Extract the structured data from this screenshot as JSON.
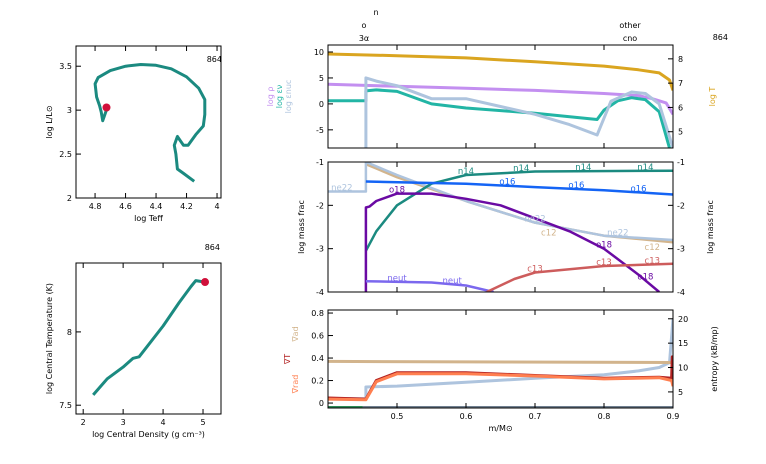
{
  "model_number": "864",
  "top_labels": {
    "n": "n",
    "o": "o",
    "three_alpha": "3α",
    "other": "other",
    "cno": "cno"
  },
  "colors": {
    "teal": "#1b8a80",
    "red": "#d0103a",
    "gold": "#daa520",
    "lavender": "#c38ff0",
    "lightblue": "#aec4de",
    "lightteal": "#22b5a5",
    "blue": "#1464f5",
    "purple": "#6a0aa3",
    "tan": "#d2b48c",
    "salmon": "#cd5c5c",
    "neut": "#7b68ee",
    "orange": "#ff7f50",
    "darkred": "#b22222",
    "gray": "#708090",
    "green": "#2e8b57"
  },
  "chart_data": [
    {
      "id": "hr",
      "type": "line",
      "xlabel": "log Teff",
      "ylabel": "log L/L⊙",
      "xlim": [
        4.925,
        3.974
      ],
      "ylim": [
        2,
        3.73
      ],
      "xticks": [
        4.8,
        4.6,
        4.4,
        4.2,
        4
      ],
      "xtick_labels": [
        "4.8",
        "4.6",
        "4.4",
        "4.2",
        "4"
      ],
      "yticks": [
        2,
        2.5,
        3,
        3.5
      ],
      "ytick_labels": [
        "2",
        "2.5",
        "3",
        "3.5"
      ],
      "x": [
        4.72,
        4.75,
        4.76,
        4.77,
        4.79,
        4.8,
        4.78,
        4.7,
        4.6,
        4.5,
        4.4,
        4.3,
        4.2,
        4.12,
        4.08,
        4.08,
        4.09,
        4.14,
        4.19,
        4.22,
        4.26,
        4.28,
        4.27,
        4.26,
        4.22,
        4.15
      ],
      "y": [
        3.03,
        2.88,
        2.98,
        3.05,
        3.15,
        3.3,
        3.37,
        3.45,
        3.5,
        3.52,
        3.51,
        3.47,
        3.38,
        3.25,
        3.12,
        2.95,
        2.82,
        2.72,
        2.6,
        2.6,
        2.7,
        2.6,
        2.5,
        2.33,
        2.28,
        2.19
      ],
      "current": [
        4.725,
        3.03
      ]
    },
    {
      "id": "center",
      "type": "line",
      "xlabel": "log Central Density (g cm⁻³)",
      "ylabel": "log Central Temperature (K)",
      "xlim": [
        1.82,
        5.45
      ],
      "ylim": [
        7.44,
        8.47
      ],
      "xticks": [
        2,
        3,
        4,
        5
      ],
      "xtick_labels": [
        "2",
        "3",
        "4",
        "5"
      ],
      "yticks": [
        7.5,
        8
      ],
      "ytick_labels": [
        "7.5",
        "8"
      ],
      "x": [
        2.25,
        2.6,
        3.0,
        3.25,
        3.4,
        3.6,
        4.0,
        4.4,
        4.7,
        4.82,
        5.05
      ],
      "y": [
        7.57,
        7.68,
        7.76,
        7.82,
        7.83,
        7.9,
        8.04,
        8.2,
        8.31,
        8.35,
        8.34
      ],
      "current": [
        5.05,
        8.34
      ]
    },
    {
      "id": "profile-top",
      "type": "line",
      "xlim": [
        0.4,
        0.9
      ],
      "ylim": [
        -8.5,
        11.35
      ],
      "ylim_right": [
        4.33,
        8.57
      ],
      "yticks": [
        -5,
        0,
        5,
        10
      ],
      "ytick_labels": [
        "-5",
        "0",
        "5",
        "10"
      ],
      "yticks_right": [
        5,
        6,
        7,
        8
      ],
      "ytick_labels_right": [
        "5",
        "6",
        "7",
        "8"
      ],
      "ylabels_left": [
        "log ρ",
        "log εν",
        "log εnuc"
      ],
      "ylabel_right": "log T",
      "series": [
        {
          "name": "log T",
          "axis": "right",
          "color": "gold",
          "x": [
            0.4,
            0.5,
            0.6,
            0.7,
            0.8,
            0.85,
            0.88,
            0.895,
            0.9
          ],
          "y": [
            8.2,
            8.13,
            8.04,
            7.88,
            7.7,
            7.55,
            7.42,
            7.13,
            6.7
          ]
        },
        {
          "name": "log ρ",
          "axis": "left",
          "color": "lavender",
          "x": [
            0.4,
            0.5,
            0.6,
            0.7,
            0.8,
            0.85,
            0.87,
            0.89,
            0.9
          ],
          "y": [
            3.8,
            3.4,
            3.0,
            2.6,
            2.0,
            1.6,
            1.0,
            0.2,
            -2
          ]
        },
        {
          "name": "log εν",
          "axis": "left",
          "color": "lightteal",
          "x": [
            0.4,
            0.455,
            0.455,
            0.47,
            0.5,
            0.55,
            0.6,
            0.7,
            0.79,
            0.8,
            0.82,
            0.84,
            0.86,
            0.88,
            0.895
          ],
          "y": [
            0.6,
            0.6,
            2.5,
            2.7,
            2.4,
            0,
            -0.8,
            -1.8,
            -3,
            -1.2,
            0.6,
            1.2,
            0.8,
            -1.5,
            -8.5
          ]
        },
        {
          "name": "log εnuc",
          "axis": "left",
          "color": "lightblue",
          "x": [
            0.455,
            0.455,
            0.47,
            0.5,
            0.55,
            0.6,
            0.65,
            0.7,
            0.75,
            0.79,
            0.81,
            0.84,
            0.86,
            0.88,
            0.9
          ],
          "y": [
            -8.5,
            5,
            4.4,
            3.5,
            1.0,
            1.0,
            -0.5,
            -2,
            -4,
            -6,
            0.5,
            2.3,
            2.0,
            0,
            -8.5
          ]
        }
      ]
    },
    {
      "id": "profile-abund",
      "type": "line",
      "xlim": [
        0.4,
        0.9
      ],
      "ylim": [
        -4,
        -1
      ],
      "yticks": [
        -4,
        -3,
        -2,
        -1
      ],
      "ytick_labels": [
        "-4",
        "-3",
        "-2",
        "-1"
      ],
      "ylabel": "log mass frac",
      "series": [
        {
          "name": "c12",
          "color": "tan",
          "x": [
            0.455,
            0.47,
            0.5,
            0.6,
            0.7,
            0.8,
            0.9
          ],
          "y": [
            -1.05,
            -1.15,
            -1.35,
            -1.9,
            -2.4,
            -2.7,
            -2.85
          ]
        },
        {
          "name": "ne22",
          "color": "lightblue",
          "x": [
            0.4,
            0.455,
            0.455,
            0.5,
            0.6,
            0.7,
            0.8,
            0.9
          ],
          "y": [
            -1.68,
            -1.68,
            -1.0,
            -1.3,
            -1.9,
            -2.4,
            -2.7,
            -2.8
          ]
        },
        {
          "name": "n14",
          "color": "teal",
          "x": [
            0.455,
            0.47,
            0.5,
            0.55,
            0.6,
            0.7,
            0.9
          ],
          "y": [
            -3.05,
            -2.6,
            -2.0,
            -1.5,
            -1.3,
            -1.22,
            -1.2
          ]
        },
        {
          "name": "o16",
          "color": "blue",
          "x": [
            0.455,
            0.6,
            0.7,
            0.8,
            0.9
          ],
          "y": [
            -1.45,
            -1.5,
            -1.58,
            -1.65,
            -1.75
          ]
        },
        {
          "name": "o18",
          "color": "purple",
          "x": [
            0.455,
            0.455,
            0.46,
            0.47,
            0.5,
            0.55,
            0.6,
            0.65,
            0.7,
            0.75,
            0.8,
            0.85,
            0.88
          ],
          "y": [
            -4,
            -2.05,
            -2.03,
            -1.9,
            -1.73,
            -1.73,
            -1.85,
            -2.0,
            -2.3,
            -2.6,
            -3.0,
            -3.6,
            -4
          ]
        },
        {
          "name": "neut",
          "color": "neut",
          "x": [
            0.455,
            0.55,
            0.6,
            0.64
          ],
          "y": [
            -3.75,
            -3.78,
            -3.85,
            -4
          ]
        },
        {
          "name": "c13",
          "color": "salmon",
          "x": [
            0.63,
            0.67,
            0.7,
            0.8,
            0.9
          ],
          "y": [
            -4,
            -3.7,
            -3.55,
            -3.4,
            -3.35
          ]
        }
      ]
    },
    {
      "id": "profile-grad",
      "type": "line",
      "xlim": [
        0.4,
        0.9
      ],
      "ylim": [
        -0.044,
        0.827
      ],
      "ylim_right": [
        1.7,
        21.8
      ],
      "xticks": [
        0.5,
        0.6,
        0.7,
        0.8,
        0.9
      ],
      "xtick_labels": [
        "0.5",
        "0.6",
        "0.7",
        "0.8",
        "0.9"
      ],
      "yticks": [
        0,
        0.2,
        0.4,
        0.6,
        0.8
      ],
      "ytick_labels": [
        "0",
        "0.2",
        "0.4",
        "0.6",
        "0.8"
      ],
      "yticks_right": [
        5,
        10,
        15,
        20
      ],
      "ytick_labels_right": [
        "5",
        "10",
        "15",
        "20"
      ],
      "xlabel": "m/M⊙",
      "ylabels_left": [
        "∇ad",
        "∇T",
        "∇rad"
      ],
      "ylabel_right": "entropy (kB/mp)",
      "series": [
        {
          "name": "entropy",
          "axis": "right",
          "color": "lightblue",
          "x": [
            0.4,
            0.455,
            0.455,
            0.5,
            0.6,
            0.7,
            0.8,
            0.85,
            0.88,
            0.895,
            0.9
          ],
          "y": [
            3.6,
            3.6,
            6.0,
            6.2,
            7.0,
            7.8,
            8.5,
            9.3,
            10,
            11,
            20
          ]
        },
        {
          "name": "∇ad",
          "axis": "left",
          "color": "tan",
          "x": [
            0.4,
            0.9
          ],
          "y": [
            0.37,
            0.36
          ]
        },
        {
          "name": "∇T",
          "axis": "left",
          "color": "darkred",
          "x": [
            0.4,
            0.455,
            0.47,
            0.5,
            0.6,
            0.7,
            0.8,
            0.88,
            0.898,
            0.899,
            0.9
          ],
          "y": [
            0.045,
            0.035,
            0.2,
            0.27,
            0.27,
            0.245,
            0.22,
            0.23,
            0.22,
            0.41,
            0.15
          ]
        },
        {
          "name": "∇rad",
          "axis": "left",
          "color": "orange",
          "x": [
            0.4,
            0.455,
            0.47,
            0.5,
            0.6,
            0.7,
            0.8,
            0.88,
            0.898,
            0.9
          ],
          "y": [
            0.035,
            0.03,
            0.19,
            0.26,
            0.26,
            0.24,
            0.215,
            0.225,
            0.2,
            0.15
          ]
        },
        {
          "name": "",
          "axis": "left",
          "color": "gray",
          "x": [
            0.4,
            0.9
          ],
          "y": [
            -0.04,
            -0.04
          ]
        },
        {
          "name": "",
          "axis": "left",
          "color": "green",
          "x": [
            0.4,
            0.45
          ],
          "y": [
            -0.04,
            -0.04
          ]
        }
      ]
    }
  ]
}
